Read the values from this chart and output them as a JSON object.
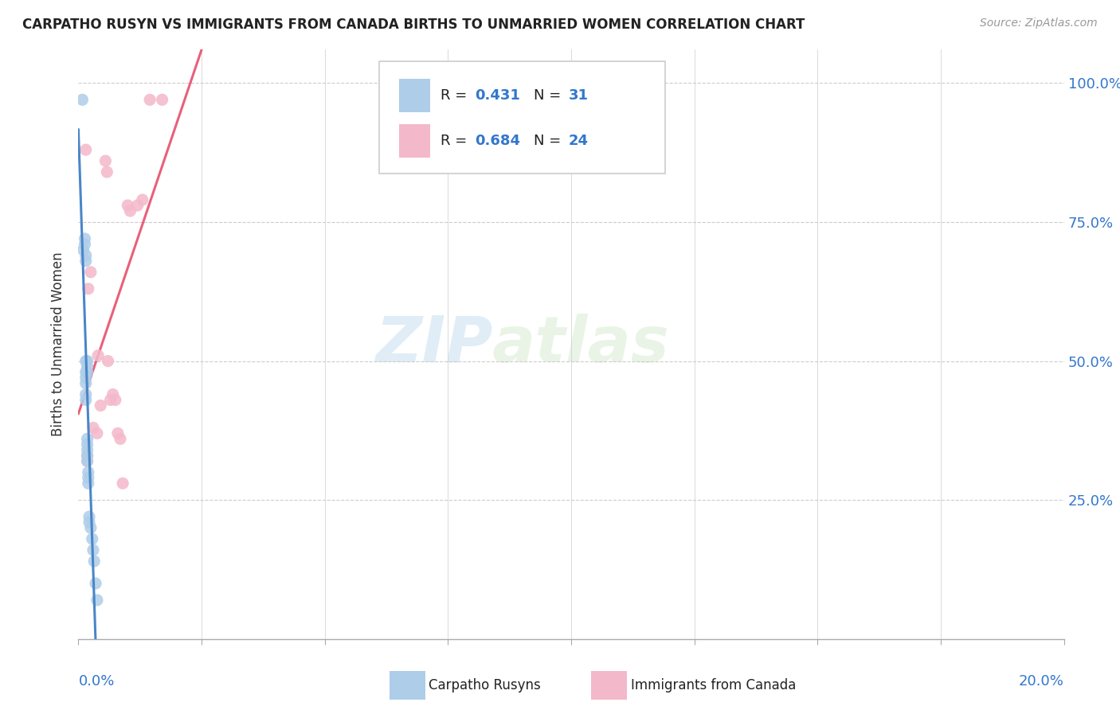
{
  "title": "CARPATHO RUSYN VS IMMIGRANTS FROM CANADA BIRTHS TO UNMARRIED WOMEN CORRELATION CHART",
  "source": "Source: ZipAtlas.com",
  "ylabel": "Births to Unmarried Women",
  "xlim": [
    0,
    0.2
  ],
  "ylim": [
    0,
    1.06
  ],
  "yticks": [
    0.25,
    0.5,
    0.75,
    1.0
  ],
  "ytick_labels": [
    "25.0%",
    "50.0%",
    "75.0%",
    "100.0%"
  ],
  "watermark_zip": "ZIP",
  "watermark_atlas": "atlas",
  "carpatho_rusyn_color": "#aecde8",
  "canada_color": "#f4b8cb",
  "carpatho_rusyn_line_color": "#4a86c8",
  "canada_line_color": "#e8607a",
  "background_color": "#ffffff",
  "grid_color": "#cccccc",
  "cr_points": [
    [
      0.0008,
      0.97
    ],
    [
      0.001,
      0.7
    ],
    [
      0.0013,
      0.71
    ],
    [
      0.0013,
      0.72
    ],
    [
      0.0015,
      0.68
    ],
    [
      0.0015,
      0.69
    ],
    [
      0.0015,
      0.5
    ],
    [
      0.0015,
      0.48
    ],
    [
      0.0015,
      0.47
    ],
    [
      0.0015,
      0.46
    ],
    [
      0.0015,
      0.44
    ],
    [
      0.0015,
      0.43
    ],
    [
      0.0018,
      0.5
    ],
    [
      0.0018,
      0.49
    ],
    [
      0.0018,
      0.48
    ],
    [
      0.0018,
      0.36
    ],
    [
      0.0018,
      0.35
    ],
    [
      0.0018,
      0.34
    ],
    [
      0.0018,
      0.33
    ],
    [
      0.0018,
      0.32
    ],
    [
      0.002,
      0.3
    ],
    [
      0.002,
      0.29
    ],
    [
      0.002,
      0.28
    ],
    [
      0.0022,
      0.22
    ],
    [
      0.0022,
      0.21
    ],
    [
      0.0025,
      0.2
    ],
    [
      0.0028,
      0.18
    ],
    [
      0.003,
      0.16
    ],
    [
      0.0032,
      0.14
    ],
    [
      0.0035,
      0.1
    ],
    [
      0.0038,
      0.07
    ]
  ],
  "ca_points": [
    [
      0.0015,
      0.88
    ],
    [
      0.0018,
      0.33
    ],
    [
      0.0018,
      0.32
    ],
    [
      0.002,
      0.63
    ],
    [
      0.0025,
      0.66
    ],
    [
      0.003,
      0.38
    ],
    [
      0.0038,
      0.37
    ],
    [
      0.004,
      0.51
    ],
    [
      0.0045,
      0.42
    ],
    [
      0.0055,
      0.86
    ],
    [
      0.0058,
      0.84
    ],
    [
      0.006,
      0.5
    ],
    [
      0.0065,
      0.43
    ],
    [
      0.007,
      0.44
    ],
    [
      0.0075,
      0.43
    ],
    [
      0.008,
      0.37
    ],
    [
      0.0085,
      0.36
    ],
    [
      0.009,
      0.28
    ],
    [
      0.01,
      0.78
    ],
    [
      0.0105,
      0.77
    ],
    [
      0.012,
      0.78
    ],
    [
      0.013,
      0.79
    ],
    [
      0.0145,
      0.97
    ],
    [
      0.017,
      0.97
    ]
  ],
  "cr_trend": [
    0.0,
    0.009,
    0.37,
    1.05
  ],
  "ca_trend_x": [
    0.0,
    0.2
  ],
  "ca_trend_y": [
    0.33,
    1.02
  ]
}
